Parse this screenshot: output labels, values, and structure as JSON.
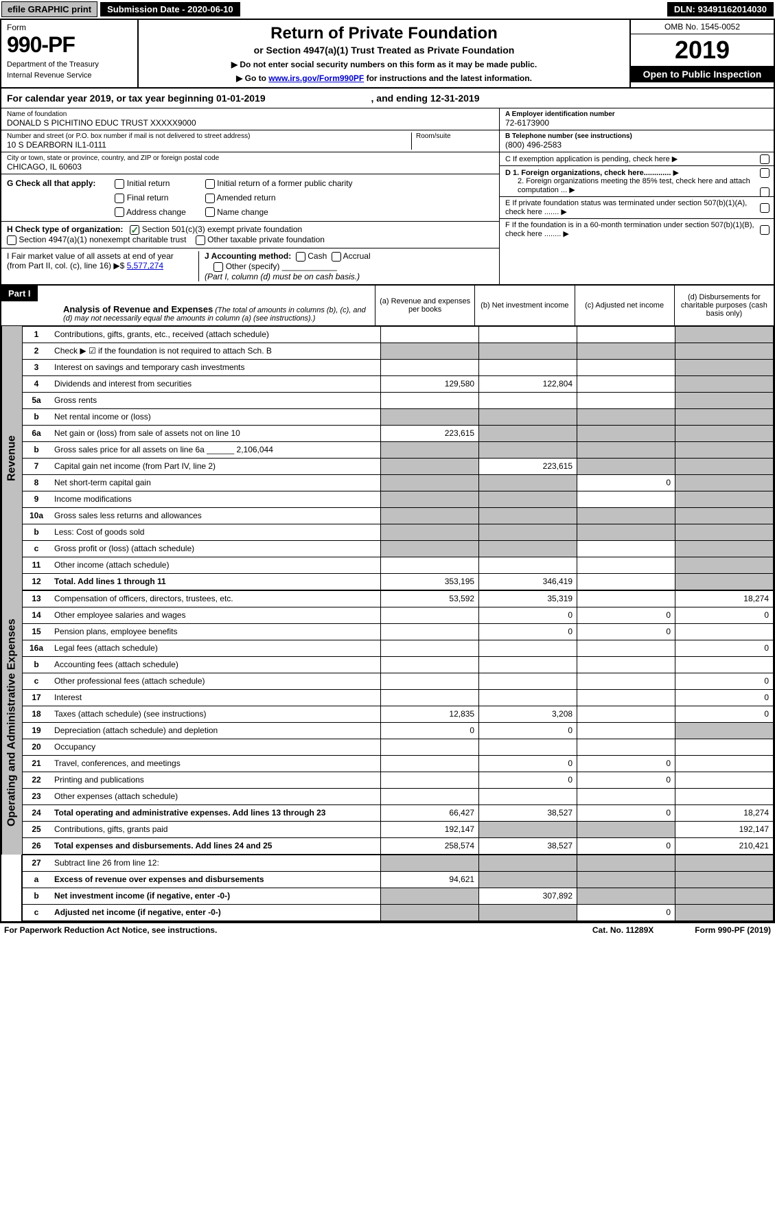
{
  "topbar": {
    "efile": "efile GRAPHIC print",
    "subdate_label": "Submission Date - ",
    "subdate": "2020-06-10",
    "dln_label": "DLN: ",
    "dln": "93491162014030"
  },
  "header": {
    "form_label": "Form",
    "form_num": "990-PF",
    "dept1": "Department of the Treasury",
    "dept2": "Internal Revenue Service",
    "title": "Return of Private Foundation",
    "subtitle": "or Section 4947(a)(1) Trust Treated as Private Foundation",
    "instr1": "▶ Do not enter social security numbers on this form as it may be made public.",
    "instr2_pre": "▶ Go to ",
    "instr2_link": "www.irs.gov/Form990PF",
    "instr2_post": " for instructions and the latest information.",
    "omb": "OMB No. 1545-0052",
    "year": "2019",
    "open": "Open to Public Inspection"
  },
  "calyear": {
    "pre": "For calendar year 2019, or tax year beginning ",
    "begin": "01-01-2019",
    "mid": ", and ending ",
    "end": "12-31-2019"
  },
  "name": {
    "lbl": "Name of foundation",
    "val": "DONALD S PICHITINO EDUC TRUST XXXXX9000"
  },
  "addr": {
    "lbl": "Number and street (or P.O. box number if mail is not delivered to street address)",
    "room_lbl": "Room/suite",
    "val": "10 S DEARBORN IL1-0111"
  },
  "city": {
    "lbl": "City or town, state or province, country, and ZIP or foreign postal code",
    "val": "CHICAGO, IL  60603"
  },
  "ein": {
    "lbl": "A Employer identification number",
    "val": "72-6173900"
  },
  "tel": {
    "lbl": "B Telephone number (see instructions)",
    "val": "(800) 496-2583"
  },
  "c": "C  If exemption application is pending, check here",
  "d1": "D 1. Foreign organizations, check here.............",
  "d2": "2. Foreign organizations meeting the 85% test, check here and attach computation ...",
  "e": "E  If private foundation status was terminated under section 507(b)(1)(A), check here .......",
  "f": "F  If the foundation is in a 60-month termination under section 507(b)(1)(B), check here ........",
  "g": {
    "lbl": "G Check all that apply:",
    "opts": [
      "Initial return",
      "Final return",
      "Address change",
      "Initial return of a former public charity",
      "Amended return",
      "Name change"
    ]
  },
  "h": {
    "lbl": "H Check type of organization:",
    "o1": "Section 501(c)(3) exempt private foundation",
    "o2": "Section 4947(a)(1) nonexempt charitable trust",
    "o3": "Other taxable private foundation"
  },
  "i": {
    "lbl": "I Fair market value of all assets at end of year (from Part II, col. (c), line 16) ▶$",
    "val": "5,577,274"
  },
  "j": {
    "lbl": "J Accounting method:",
    "o1": "Cash",
    "o2": "Accrual",
    "o3": "Other (specify)",
    "note": "(Part I, column (d) must be on cash basis.)"
  },
  "part1": {
    "hdr": "Part I",
    "title": "Analysis of Revenue and Expenses",
    "sub": "(The total of amounts in columns (b), (c), and (d) may not necessarily equal the amounts in column (a) (see instructions).)",
    "cols": {
      "a": "(a) Revenue and expenses per books",
      "b": "(b) Net investment income",
      "c": "(c) Adjusted net income",
      "d": "(d) Disbursements for charitable purposes (cash basis only)"
    }
  },
  "side_rev": "Revenue",
  "side_exp": "Operating and Administrative Expenses",
  "rows_rev": [
    {
      "ln": "1",
      "desc": "Contributions, gifts, grants, etc., received (attach schedule)",
      "a": "",
      "b": "",
      "c": "",
      "d": "",
      "dg": true
    },
    {
      "ln": "2",
      "desc": "Check ▶ ☑ if the foundation is not required to attach Sch. B",
      "a": "",
      "b": "",
      "c": "",
      "d": "",
      "dg": true,
      "ag": true,
      "bg": true,
      "cg": true
    },
    {
      "ln": "3",
      "desc": "Interest on savings and temporary cash investments",
      "a": "",
      "b": "",
      "c": "",
      "d": "",
      "dg": true
    },
    {
      "ln": "4",
      "desc": "Dividends and interest from securities",
      "a": "129,580",
      "b": "122,804",
      "c": "",
      "d": "",
      "dg": true
    },
    {
      "ln": "5a",
      "desc": "Gross rents",
      "a": "",
      "b": "",
      "c": "",
      "d": "",
      "dg": true
    },
    {
      "ln": "b",
      "desc": "Net rental income or (loss)",
      "a": "",
      "b": "",
      "c": "",
      "d": "",
      "ag": true,
      "bg": true,
      "cg": true,
      "dg": true
    },
    {
      "ln": "6a",
      "desc": "Net gain or (loss) from sale of assets not on line 10",
      "a": "223,615",
      "b": "",
      "c": "",
      "d": "",
      "bg": true,
      "cg": true,
      "dg": true
    },
    {
      "ln": "b",
      "desc": "Gross sales price for all assets on line 6a ______ 2,106,044",
      "a": "",
      "b": "",
      "c": "",
      "d": "",
      "ag": true,
      "bg": true,
      "cg": true,
      "dg": true
    },
    {
      "ln": "7",
      "desc": "Capital gain net income (from Part IV, line 2)",
      "a": "",
      "b": "223,615",
      "c": "",
      "d": "",
      "ag": true,
      "cg": true,
      "dg": true
    },
    {
      "ln": "8",
      "desc": "Net short-term capital gain",
      "a": "",
      "b": "",
      "c": "0",
      "d": "",
      "ag": true,
      "bg": true,
      "dg": true
    },
    {
      "ln": "9",
      "desc": "Income modifications",
      "a": "",
      "b": "",
      "c": "",
      "d": "",
      "ag": true,
      "bg": true,
      "dg": true
    },
    {
      "ln": "10a",
      "desc": "Gross sales less returns and allowances",
      "a": "",
      "b": "",
      "c": "",
      "d": "",
      "ag": true,
      "bg": true,
      "cg": true,
      "dg": true
    },
    {
      "ln": "b",
      "desc": "Less: Cost of goods sold",
      "a": "",
      "b": "",
      "c": "",
      "d": "",
      "ag": true,
      "bg": true,
      "cg": true,
      "dg": true
    },
    {
      "ln": "c",
      "desc": "Gross profit or (loss) (attach schedule)",
      "a": "",
      "b": "",
      "c": "",
      "d": "",
      "ag": true,
      "bg": true,
      "dg": true
    },
    {
      "ln": "11",
      "desc": "Other income (attach schedule)",
      "a": "",
      "b": "",
      "c": "",
      "d": "",
      "dg": true
    },
    {
      "ln": "12",
      "desc": "Total. Add lines 1 through 11",
      "a": "353,195",
      "b": "346,419",
      "c": "",
      "d": "",
      "bold": true,
      "dg": true
    }
  ],
  "rows_exp": [
    {
      "ln": "13",
      "desc": "Compensation of officers, directors, trustees, etc.",
      "a": "53,592",
      "b": "35,319",
      "c": "",
      "d": "18,274"
    },
    {
      "ln": "14",
      "desc": "Other employee salaries and wages",
      "a": "",
      "b": "0",
      "c": "0",
      "d": "0"
    },
    {
      "ln": "15",
      "desc": "Pension plans, employee benefits",
      "a": "",
      "b": "0",
      "c": "0",
      "d": ""
    },
    {
      "ln": "16a",
      "desc": "Legal fees (attach schedule)",
      "a": "",
      "b": "",
      "c": "",
      "d": "0"
    },
    {
      "ln": "b",
      "desc": "Accounting fees (attach schedule)",
      "a": "",
      "b": "",
      "c": "",
      "d": ""
    },
    {
      "ln": "c",
      "desc": "Other professional fees (attach schedule)",
      "a": "",
      "b": "",
      "c": "",
      "d": "0"
    },
    {
      "ln": "17",
      "desc": "Interest",
      "a": "",
      "b": "",
      "c": "",
      "d": "0"
    },
    {
      "ln": "18",
      "desc": "Taxes (attach schedule) (see instructions)",
      "a": "12,835",
      "b": "3,208",
      "c": "",
      "d": "0"
    },
    {
      "ln": "19",
      "desc": "Depreciation (attach schedule) and depletion",
      "a": "0",
      "b": "0",
      "c": "",
      "d": "",
      "dg": true
    },
    {
      "ln": "20",
      "desc": "Occupancy",
      "a": "",
      "b": "",
      "c": "",
      "d": ""
    },
    {
      "ln": "21",
      "desc": "Travel, conferences, and meetings",
      "a": "",
      "b": "0",
      "c": "0",
      "d": ""
    },
    {
      "ln": "22",
      "desc": "Printing and publications",
      "a": "",
      "b": "0",
      "c": "0",
      "d": ""
    },
    {
      "ln": "23",
      "desc": "Other expenses (attach schedule)",
      "a": "",
      "b": "",
      "c": "",
      "d": ""
    },
    {
      "ln": "24",
      "desc": "Total operating and administrative expenses. Add lines 13 through 23",
      "a": "66,427",
      "b": "38,527",
      "c": "0",
      "d": "18,274",
      "bold": true
    },
    {
      "ln": "25",
      "desc": "Contributions, gifts, grants paid",
      "a": "192,147",
      "b": "",
      "c": "",
      "d": "192,147",
      "bg": true,
      "cg": true
    },
    {
      "ln": "26",
      "desc": "Total expenses and disbursements. Add lines 24 and 25",
      "a": "258,574",
      "b": "38,527",
      "c": "0",
      "d": "210,421",
      "bold": true
    }
  ],
  "rows_bottom": [
    {
      "ln": "27",
      "desc": "Subtract line 26 from line 12:",
      "a": "",
      "b": "",
      "c": "",
      "d": "",
      "ag": true,
      "bg": true,
      "cg": true,
      "dg": true
    },
    {
      "ln": "a",
      "desc": "Excess of revenue over expenses and disbursements",
      "a": "94,621",
      "b": "",
      "c": "",
      "d": "",
      "bold": true,
      "bg": true,
      "cg": true,
      "dg": true
    },
    {
      "ln": "b",
      "desc": "Net investment income (if negative, enter -0-)",
      "a": "",
      "b": "307,892",
      "c": "",
      "d": "",
      "bold": true,
      "ag": true,
      "cg": true,
      "dg": true
    },
    {
      "ln": "c",
      "desc": "Adjusted net income (if negative, enter -0-)",
      "a": "",
      "b": "",
      "c": "0",
      "d": "",
      "bold": true,
      "ag": true,
      "bg": true,
      "dg": true
    }
  ],
  "footer": {
    "left": "For Paperwork Reduction Act Notice, see instructions.",
    "mid": "Cat. No. 11289X",
    "right": "Form 990-PF (2019)"
  }
}
